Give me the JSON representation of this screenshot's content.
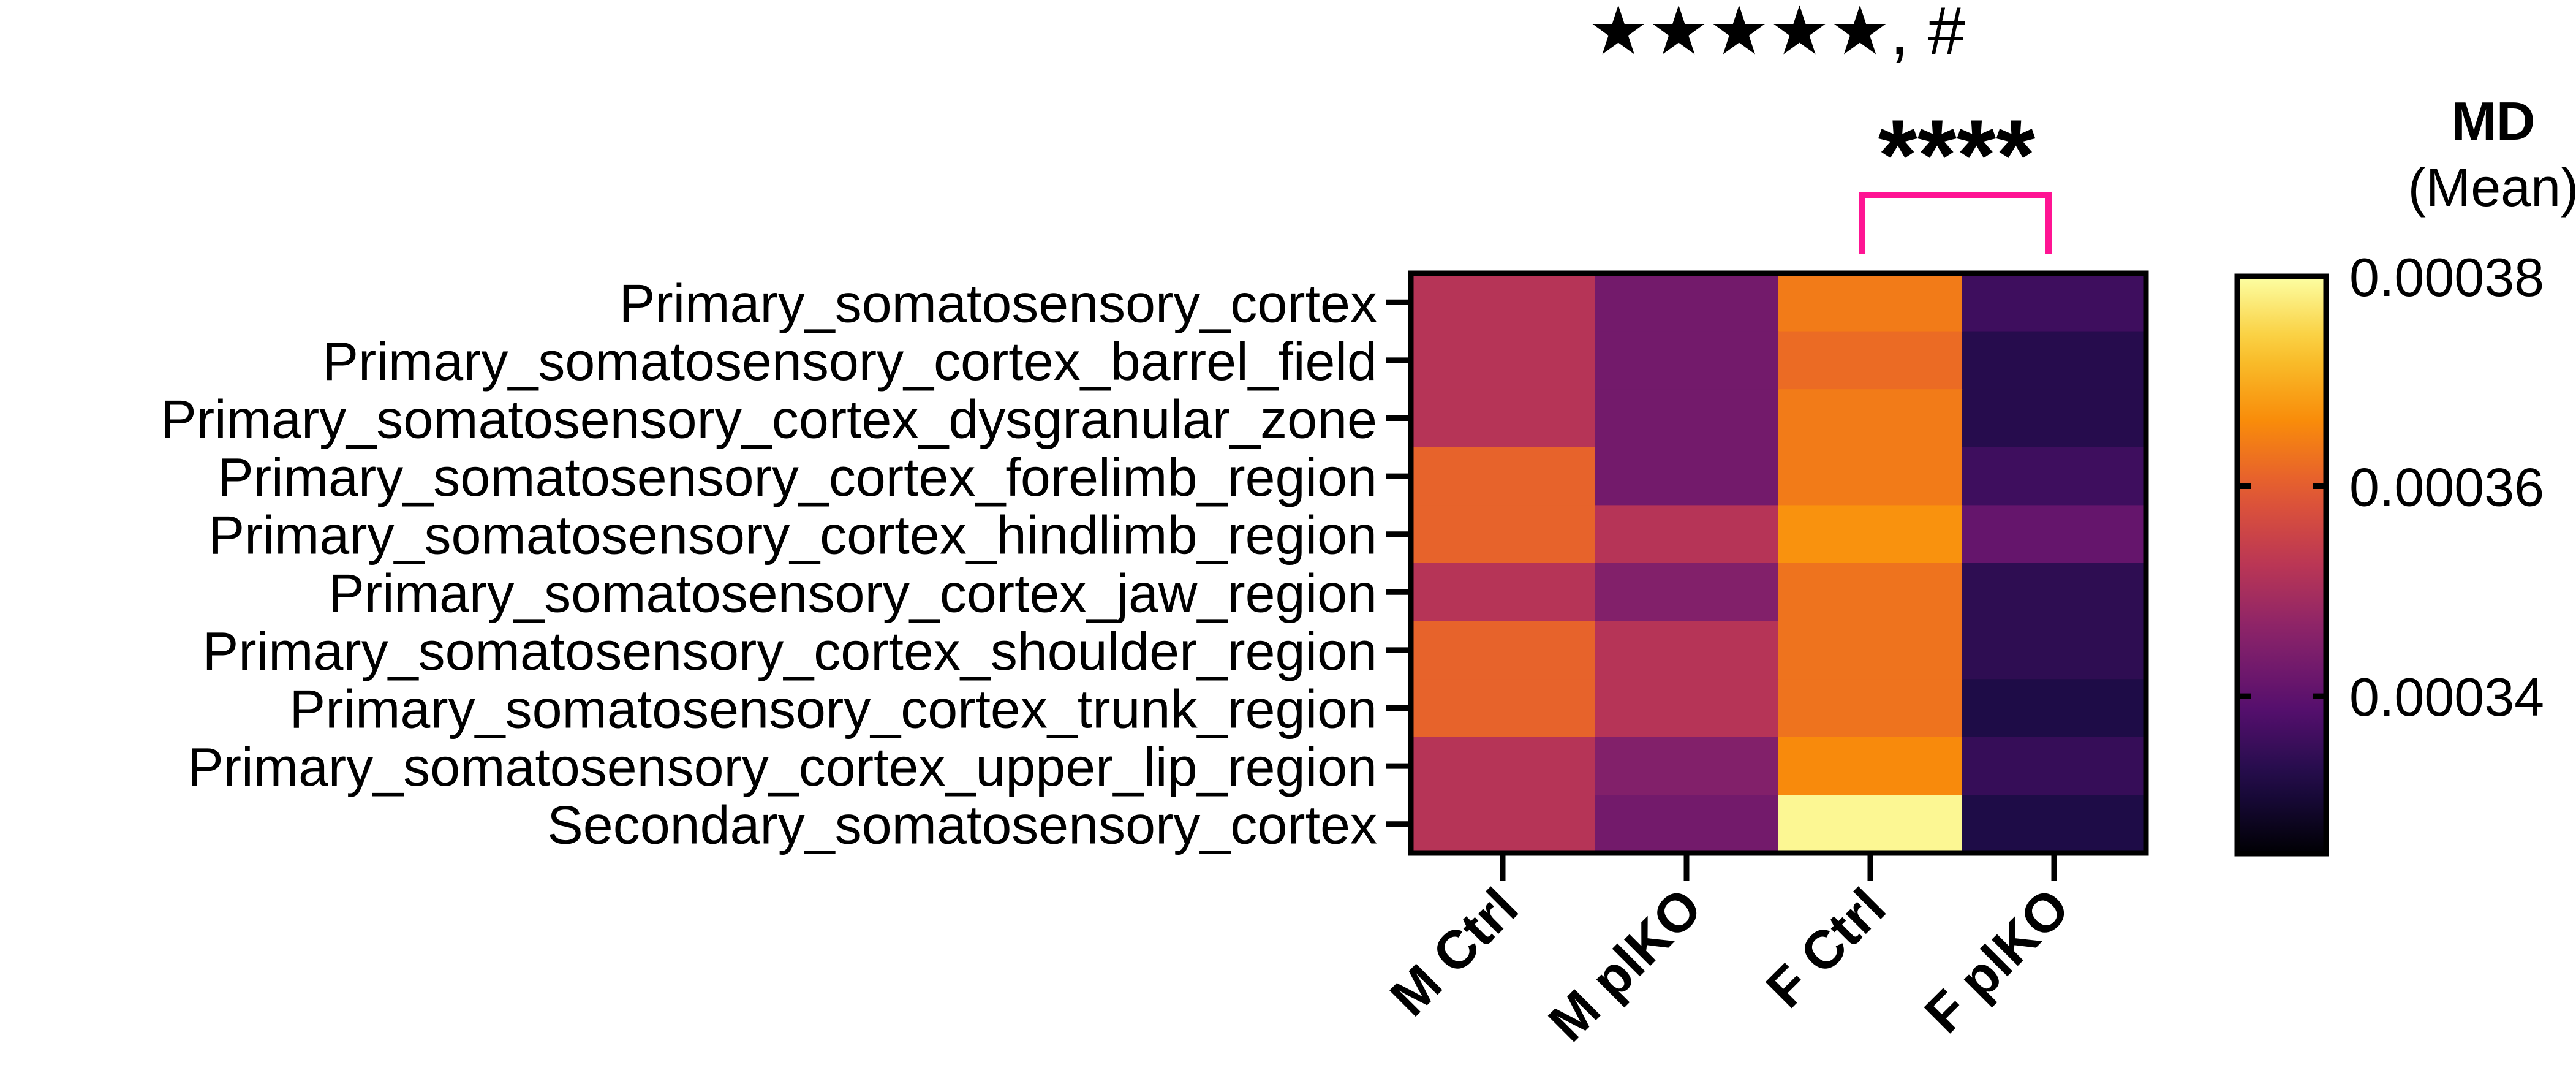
{
  "chart_data": {
    "type": "heatmap",
    "title": "",
    "annotations": {
      "top_symbols": "★★★★★, #",
      "significance": "****",
      "significance_color": "#ff1493",
      "significance_between": [
        "F Ctrl",
        "F plKO"
      ]
    },
    "rows": [
      "Primary_somatosensory_cortex",
      "Primary_somatosensory_cortex_barrel_field",
      "Primary_somatosensory_cortex_dysgranular_zone",
      "Primary_somatosensory_cortex_forelimb_region",
      "Primary_somatosensory_cortex_hindlimb_region",
      "Primary_somatosensory_cortex_jaw_region",
      "Primary_somatosensory_cortex_shoulder_region",
      "Primary_somatosensory_cortex_trunk_region",
      "Primary_somatosensory_cortex_upper_lip_region",
      "Secondary_somatosensory_cortex"
    ],
    "columns": [
      "M Ctrl",
      "M plKO",
      "F Ctrl",
      "F plKO"
    ],
    "values": [
      [
        0.000352,
        0.000343,
        0.000364,
        0.000336
      ],
      [
        0.000352,
        0.000343,
        0.000362,
        0.000333
      ],
      [
        0.000352,
        0.000343,
        0.000364,
        0.000333
      ],
      [
        0.000361,
        0.000343,
        0.000364,
        0.000336
      ],
      [
        0.000361,
        0.000352,
        0.000367,
        0.000341
      ],
      [
        0.000352,
        0.000345,
        0.000363,
        0.000334
      ],
      [
        0.000361,
        0.000352,
        0.000363,
        0.000334
      ],
      [
        0.000361,
        0.000352,
        0.000363,
        0.000332
      ],
      [
        0.000352,
        0.000345,
        0.000366,
        0.000335
      ],
      [
        0.000352,
        0.000343,
        0.000379,
        0.000332
      ]
    ],
    "colorbar": {
      "title": "MD",
      "subtitle": "(Mean)",
      "min": 0.000325,
      "max": 0.00038,
      "ticks": [
        0.00034,
        0.00036,
        0.00038
      ],
      "tick_labels": [
        "0.00034",
        "0.00036",
        "0.00038"
      ],
      "colormap": "inferno",
      "placement": "right"
    },
    "grid": false
  }
}
